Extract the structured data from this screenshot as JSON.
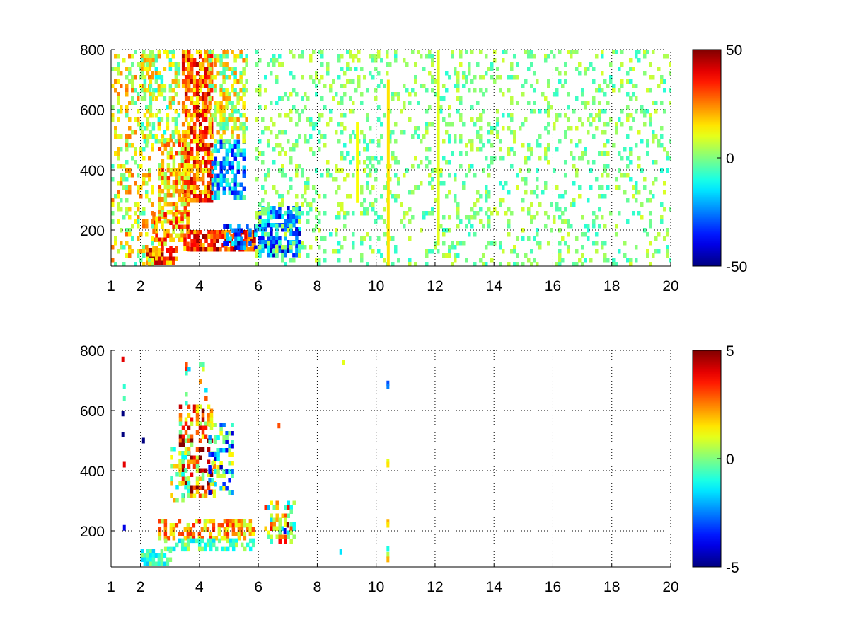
{
  "chart_data": [
    {
      "type": "heatmap",
      "title": "",
      "xlabel": "",
      "ylabel": "",
      "xlim": [
        1,
        20
      ],
      "ylim": [
        80,
        800
      ],
      "xticks": [
        1,
        2,
        4,
        6,
        8,
        10,
        12,
        14,
        16,
        18,
        20
      ],
      "yticks": [
        200,
        400,
        600,
        800
      ],
      "grid": true,
      "colormap": "jet",
      "clim": [
        -50,
        50
      ],
      "colorbar_ticks": [
        "50",
        "0",
        "-50"
      ],
      "background": "#ffffff",
      "regions": [
        {
          "x": [
            3.4,
            4.4
          ],
          "y": [
            300,
            800
          ],
          "value": 28,
          "density": 0.75
        },
        {
          "x": [
            2.6,
            3.6
          ],
          "y": [
            230,
            520
          ],
          "value": 18,
          "density": 0.65
        },
        {
          "x": [
            4.4,
            5.5
          ],
          "y": [
            310,
            500
          ],
          "value": -20,
          "density": 0.6
        },
        {
          "x": [
            4.3,
            5.6
          ],
          "y": [
            500,
            800
          ],
          "value": 8,
          "density": 0.5
        },
        {
          "x": [
            3.6,
            5.9
          ],
          "y": [
            130,
            200
          ],
          "value": 35,
          "density": 0.85
        },
        {
          "x": [
            4.8,
            5.9
          ],
          "y": [
            140,
            220
          ],
          "value": -30,
          "density": 0.55
        },
        {
          "x": [
            2.2,
            3.2
          ],
          "y": [
            95,
            140
          ],
          "value": 30,
          "density": 0.9
        },
        {
          "x": [
            2.4,
            3.6
          ],
          "y": [
            140,
            260
          ],
          "value": 22,
          "density": 0.6
        },
        {
          "x": [
            6.0,
            7.4
          ],
          "y": [
            120,
            280
          ],
          "value": -28,
          "density": 0.7
        },
        {
          "x": [
            1.0,
            2.4
          ],
          "y": [
            80,
            800
          ],
          "value": 10,
          "density": 0.3
        },
        {
          "x": [
            2.0,
            3.3
          ],
          "y": [
            500,
            800
          ],
          "value": 6,
          "density": 0.4
        },
        {
          "x": [
            5.9,
            20.0
          ],
          "y": [
            80,
            800
          ],
          "value": 0,
          "spread": 9,
          "density": 0.18
        }
      ],
      "stripes": [
        {
          "x": 10.4,
          "y": [
            80,
            700
          ],
          "value": 15
        },
        {
          "x": 9.35,
          "y": [
            290,
            560
          ],
          "value": 12
        },
        {
          "x": 12.1,
          "y": [
            150,
            800
          ],
          "value": 10
        }
      ]
    },
    {
      "type": "heatmap",
      "title": "",
      "xlabel": "",
      "ylabel": "",
      "xlim": [
        1,
        20
      ],
      "ylim": [
        80,
        800
      ],
      "xticks": [
        1,
        2,
        4,
        6,
        8,
        10,
        12,
        14,
        16,
        18,
        20
      ],
      "yticks": [
        200,
        400,
        600,
        800
      ],
      "grid": true,
      "colormap": "jet",
      "clim": [
        -5,
        5
      ],
      "colorbar_ticks": [
        "5",
        "0",
        "-5"
      ],
      "background": "#ffffff",
      "regions": [
        {
          "x": [
            3.3,
            4.5
          ],
          "y": [
            320,
            620
          ],
          "value": 2.5,
          "spread": 3,
          "density": 0.45
        },
        {
          "x": [
            4.3,
            5.1
          ],
          "y": [
            330,
            560
          ],
          "value": -1.5,
          "spread": 3,
          "density": 0.4
        },
        {
          "x": [
            3.0,
            3.6
          ],
          "y": [
            300,
            480
          ],
          "value": 0.5,
          "spread": 2,
          "density": 0.35
        },
        {
          "x": [
            3.5,
            4.2
          ],
          "y": [
            620,
            760
          ],
          "value": 0.5,
          "spread": 3,
          "density": 0.15
        },
        {
          "x": [
            2.6,
            5.8
          ],
          "y": [
            170,
            240
          ],
          "value": 2,
          "spread": 1.5,
          "density": 0.55
        },
        {
          "x": [
            2.8,
            5.8
          ],
          "y": [
            140,
            175
          ],
          "value": -0.5,
          "spread": 1.2,
          "density": 0.5
        },
        {
          "x": [
            2.0,
            3.0
          ],
          "y": [
            95,
            140
          ],
          "value": -0.8,
          "spread": 1,
          "density": 0.6
        },
        {
          "x": [
            6.2,
            7.2
          ],
          "y": [
            160,
            300
          ],
          "value": 1,
          "spread": 3,
          "density": 0.5
        }
      ],
      "points": [
        {
          "x": 1.4,
          "y": 770,
          "value": 4
        },
        {
          "x": 1.45,
          "y": 680,
          "value": -0.8
        },
        {
          "x": 1.45,
          "y": 640,
          "value": -0.5
        },
        {
          "x": 1.4,
          "y": 590,
          "value": -5
        },
        {
          "x": 1.4,
          "y": 520,
          "value": -5
        },
        {
          "x": 1.45,
          "y": 420,
          "value": 4
        },
        {
          "x": 1.45,
          "y": 210,
          "value": -4
        },
        {
          "x": 2.1,
          "y": 500,
          "value": -5
        },
        {
          "x": 7.0,
          "y": 220,
          "value": 5
        },
        {
          "x": 6.9,
          "y": 200,
          "value": -4
        },
        {
          "x": 6.7,
          "y": 550,
          "value": 3
        },
        {
          "x": 8.9,
          "y": 760,
          "value": 1
        },
        {
          "x": 8.8,
          "y": 130,
          "value": -1.5
        },
        {
          "x": 10.4,
          "y": 690,
          "value": -3
        },
        {
          "x": 10.4,
          "y": 680,
          "value": -2.5
        },
        {
          "x": 10.4,
          "y": 430,
          "value": 1
        },
        {
          "x": 10.4,
          "y": 420,
          "value": 1.5
        },
        {
          "x": 10.4,
          "y": 230,
          "value": 2
        },
        {
          "x": 10.4,
          "y": 220,
          "value": 1.5
        },
        {
          "x": 10.4,
          "y": 140,
          "value": -1
        },
        {
          "x": 10.4,
          "y": 120,
          "value": 0.5
        },
        {
          "x": 10.4,
          "y": 105,
          "value": 2
        }
      ]
    }
  ]
}
